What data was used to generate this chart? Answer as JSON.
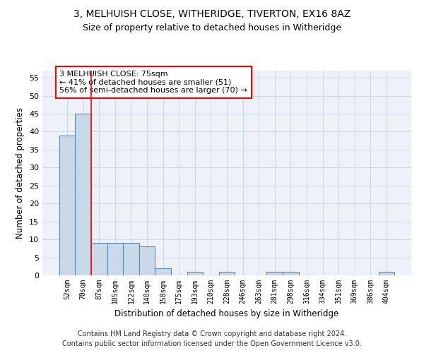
{
  "title1": "3, MELHUISH CLOSE, WITHERIDGE, TIVERTON, EX16 8AZ",
  "title2": "Size of property relative to detached houses in Witheridge",
  "xlabel": "Distribution of detached houses by size in Witheridge",
  "ylabel": "Number of detached properties",
  "categories": [
    "52sqm",
    "70sqm",
    "87sqm",
    "105sqm",
    "122sqm",
    "140sqm",
    "158sqm",
    "175sqm",
    "193sqm",
    "210sqm",
    "228sqm",
    "246sqm",
    "263sqm",
    "281sqm",
    "298sqm",
    "316sqm",
    "334sqm",
    "351sqm",
    "369sqm",
    "386sqm",
    "404sqm"
  ],
  "values": [
    39,
    45,
    9,
    9,
    9,
    8,
    2,
    0,
    1,
    0,
    1,
    0,
    0,
    1,
    1,
    0,
    0,
    0,
    0,
    0,
    1
  ],
  "bar_color": "#c9d9ea",
  "bar_edge_color": "#5a8ab0",
  "bar_edge_width": 0.8,
  "red_line_x": 1.5,
  "annotation_text": "3 MELHUISH CLOSE: 75sqm\n← 41% of detached houses are smaller (51)\n56% of semi-detached houses are larger (70) →",
  "annotation_box_color": "white",
  "annotation_box_edge_color": "red",
  "annotation_fontsize": 8.0,
  "ylim": [
    0,
    57
  ],
  "yticks": [
    0,
    5,
    10,
    15,
    20,
    25,
    30,
    35,
    40,
    45,
    50,
    55
  ],
  "title1_fontsize": 10,
  "title2_fontsize": 9,
  "xlabel_fontsize": 8.5,
  "ylabel_fontsize": 8.5,
  "footer_text": "Contains HM Land Registry data © Crown copyright and database right 2024.\nContains public sector information licensed under the Open Government Licence v3.0.",
  "footer_fontsize": 7.0,
  "grid_color": "#d0d8e8",
  "background_color": "#eef2f8"
}
